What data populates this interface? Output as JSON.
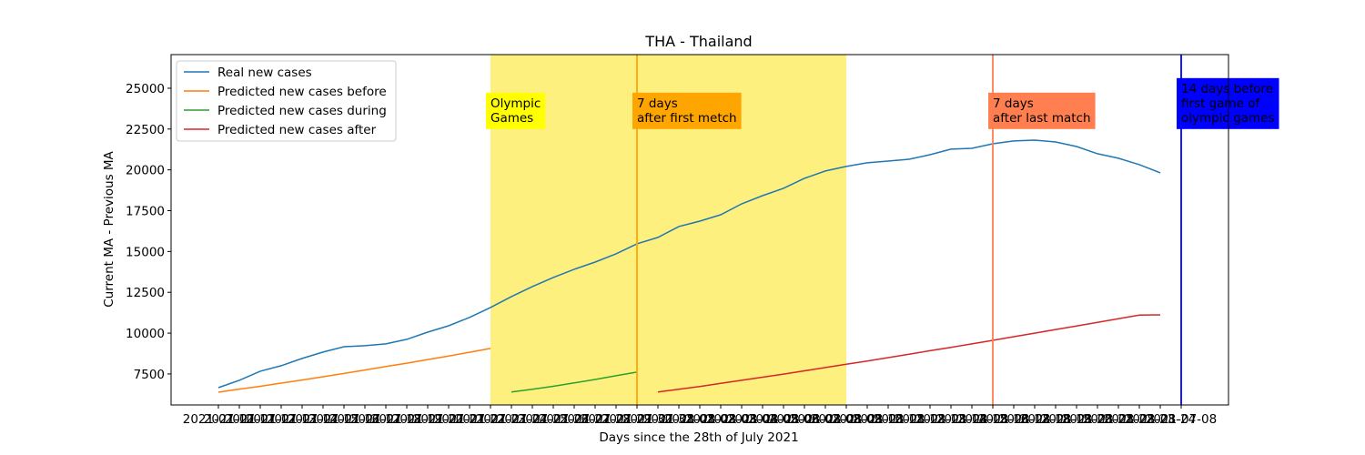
{
  "chart_data": {
    "type": "line",
    "title": "THA - Thailand",
    "x_label": "Days since the 28th of July 2021",
    "y_label": "Current MA - Previous MA",
    "categories": [
      "2021-07-10",
      "2021-07-11",
      "2021-07-12",
      "2021-07-13",
      "2021-07-14",
      "2021-07-15",
      "2021-07-16",
      "2021-07-17",
      "2021-07-18",
      "2021-07-19",
      "2021-07-20",
      "2021-07-21",
      "2021-07-22",
      "2021-07-23",
      "2021-07-24",
      "2021-07-25",
      "2021-07-26",
      "2021-07-27",
      "2021-07-28",
      "2021-07-29",
      "2021-07-30",
      "2021-07-31",
      "2021-08-01",
      "2021-08-02",
      "2021-08-03",
      "2021-08-04",
      "2021-08-05",
      "2021-08-06",
      "2021-08-07",
      "2021-08-08",
      "2021-08-09",
      "2021-08-10",
      "2021-08-11",
      "2021-08-12",
      "2021-08-13",
      "2021-08-14",
      "2021-08-15",
      "2021-08-16",
      "2021-08-17",
      "2021-08-18",
      "2021-08-19",
      "2021-08-20",
      "2021-08-21",
      "2021-08-22",
      "2021-08-23",
      "2021-08-24",
      "2021-07-08"
    ],
    "series": [
      {
        "name": "Real new cases",
        "color": "#1f77b4",
        "values": [
          6660,
          7110,
          7670,
          8000,
          8450,
          8840,
          9170,
          9230,
          9340,
          9620,
          10060,
          10450,
          10960,
          11570,
          12240,
          12850,
          13410,
          13910,
          14350,
          14860,
          15470,
          15860,
          16530,
          16860,
          17250,
          17920,
          18420,
          18870,
          19480,
          19930,
          20210,
          20430,
          20540,
          20650,
          20930,
          21270,
          21320,
          21600,
          21770,
          21820,
          21710,
          21430,
          20990,
          20710,
          20320,
          19820,
          null
        ]
      },
      {
        "name": "Predicted new cases before",
        "color": "#ff7f0e",
        "values": [
          6380,
          6570,
          6740,
          6940,
          7130,
          7330,
          7530,
          7740,
          7950,
          8160,
          8380,
          8600,
          8830,
          9060,
          null,
          null,
          null,
          null,
          null,
          null,
          null,
          null,
          null,
          null,
          null,
          null,
          null,
          null,
          null,
          null,
          null,
          null,
          null,
          null,
          null,
          null,
          null,
          null,
          null,
          null,
          null,
          null,
          null,
          null,
          null,
          null,
          null
        ]
      },
      {
        "name": "Predicted new cases during",
        "color": "#2ca02c",
        "values": [
          null,
          null,
          null,
          null,
          null,
          null,
          null,
          null,
          null,
          null,
          null,
          null,
          null,
          null,
          6390,
          6560,
          6740,
          6950,
          7160,
          7390,
          7610,
          null,
          null,
          null,
          null,
          null,
          null,
          null,
          null,
          null,
          null,
          null,
          null,
          null,
          null,
          null,
          null,
          null,
          null,
          null,
          null,
          null,
          null,
          null,
          null,
          null,
          null
        ]
      },
      {
        "name": "Predicted new cases after",
        "color": "#d62728",
        "values": [
          null,
          null,
          null,
          null,
          null,
          null,
          null,
          null,
          null,
          null,
          null,
          null,
          null,
          null,
          null,
          null,
          null,
          null,
          null,
          null,
          null,
          6390,
          6560,
          6730,
          6920,
          7110,
          7300,
          7490,
          7690,
          7890,
          8090,
          8290,
          8500,
          8710,
          8920,
          9130,
          9340,
          9560,
          9780,
          10000,
          10220,
          10440,
          10660,
          10880,
          11100,
          11120,
          null
        ]
      }
    ],
    "ylim": [
      5600,
      27060
    ],
    "yticks": [
      7500,
      10000,
      12500,
      15000,
      17500,
      20000,
      22500,
      25000
    ],
    "legend": "upper left",
    "shade": {
      "start": "2021-07-23",
      "end": "2021-08-09",
      "color": "#fdf07f"
    },
    "vlines": [
      {
        "x": "2021-07-30",
        "color": "#ffa500"
      },
      {
        "x": "2021-08-16",
        "color": "#ff7f50"
      },
      {
        "x": "2021-07-08",
        "color": "#0000ff"
      }
    ],
    "annotations": [
      {
        "x": "2021-07-23",
        "y": 22500,
        "text": [
          "Olympic",
          "Games"
        ],
        "box": "#ffff00",
        "text_color": "#000000"
      },
      {
        "x": "2021-07-30",
        "y": 22500,
        "text": [
          "7 days",
          "after first metch"
        ],
        "box": "#ffa500",
        "text_color": "#000000"
      },
      {
        "x": "2021-08-16",
        "y": 22500,
        "text": [
          "7 days",
          "after last match"
        ],
        "box": "#ff7f50",
        "text_color": "#000000"
      },
      {
        "x": "2021-07-08",
        "y": 22500,
        "text": [
          "14 days before",
          "first game of",
          "olympic games"
        ],
        "box": "#0000ff",
        "text_color": "#ffffff"
      }
    ]
  }
}
